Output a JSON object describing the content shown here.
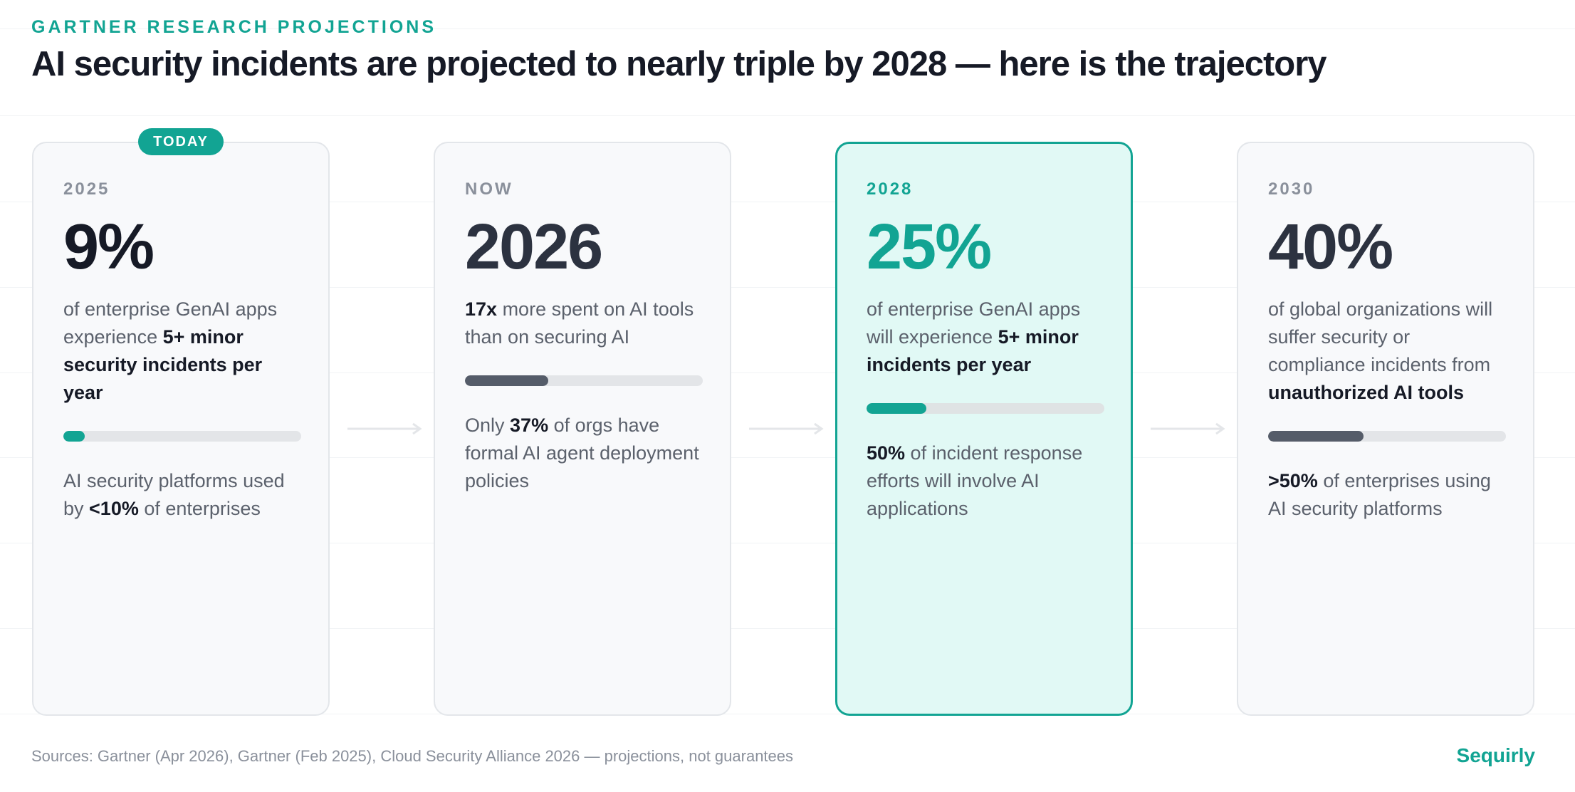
{
  "header": {
    "eyebrow": "GARTNER RESEARCH PROJECTIONS",
    "title": "AI security incidents are projected to nearly triple by 2028 — here is the trajectory"
  },
  "badge": {
    "label": "TODAY"
  },
  "cards": [
    {
      "label": "2025",
      "big": "9%",
      "desc": [
        {
          "text": "of enterprise GenAI apps experience ",
          "bold": false
        },
        {
          "text": "5+ minor security incidents per year",
          "bold": true
        }
      ],
      "progress": 0.09,
      "progress_color": "teal",
      "foot": [
        {
          "text": "AI security platforms used by ",
          "bold": false
        },
        {
          "text": "<10%",
          "bold": true
        },
        {
          "text": " of enterprises",
          "bold": false
        }
      ]
    },
    {
      "label": "NOW",
      "big": "2026",
      "desc": [
        {
          "text": "17x",
          "bold": true
        },
        {
          "text": " more spent on AI tools than on securing AI",
          "bold": false
        }
      ],
      "progress": 0.35,
      "progress_color": "slate",
      "foot": [
        {
          "text": "Only ",
          "bold": false
        },
        {
          "text": "37%",
          "bold": true
        },
        {
          "text": " of orgs have formal AI agent deployment policies",
          "bold": false
        }
      ]
    },
    {
      "label": "2028",
      "big": "25%",
      "desc": [
        {
          "text": "of enterprise GenAI apps will experience ",
          "bold": false
        },
        {
          "text": "5+ minor incidents per year",
          "bold": true
        }
      ],
      "progress": 0.25,
      "progress_color": "teal",
      "foot": [
        {
          "text": "50%",
          "bold": true
        },
        {
          "text": " of incident response efforts will involve AI applications",
          "bold": false
        }
      ]
    },
    {
      "label": "2030",
      "big": "40%",
      "desc": [
        {
          "text": "of global organizations will suffer security or compliance incidents from ",
          "bold": false
        },
        {
          "text": "unauthorized AI tools",
          "bold": true
        }
      ],
      "progress": 0.4,
      "progress_color": "slate",
      "foot": [
        {
          "text": ">50%",
          "bold": true
        },
        {
          "text": " of enterprises using AI security platforms",
          "bold": false
        }
      ]
    }
  ],
  "footer": {
    "sources": "Sources: Gartner (Apr 2026), Gartner (Feb 2025), Cloud Security Alliance 2026 — projections, not guarantees",
    "brand": "Sequirly"
  },
  "colors": {
    "accent": "#12a493",
    "slate": "#555c69",
    "highlight_bg": "#e1f9f5"
  },
  "icons": {
    "arrow": "arrow-right-icon"
  }
}
